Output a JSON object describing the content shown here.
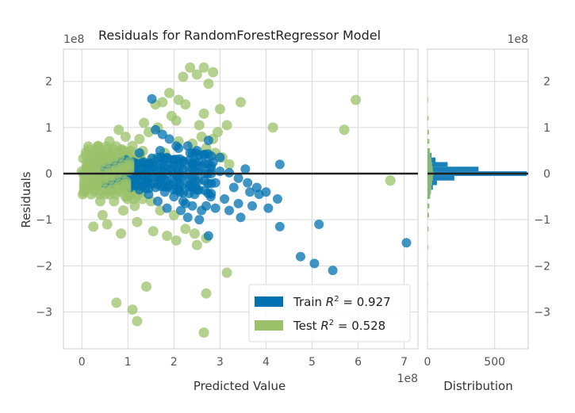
{
  "chart_data": {
    "type": "scatter",
    "title": "Residuals for RandomForestRegressor Model",
    "xlabel": "Predicted Value",
    "ylabel": "Residuals",
    "x_exponent": "1e8",
    "y_exponent": "1e8",
    "xlim": [
      -0.4,
      7.3
    ],
    "ylim": [
      -3.8,
      2.7
    ],
    "xticks": [
      "0",
      "1",
      "2",
      "3",
      "4",
      "5",
      "6",
      "7"
    ],
    "yticks": [
      "−3",
      "−2",
      "−1",
      "0",
      "1",
      "2"
    ],
    "hist_xlabel": "Distribution",
    "hist_xticks": [
      "0",
      "500"
    ],
    "hist_xlim": [
      0,
      750
    ],
    "grid": true,
    "legend_position": "lower-right",
    "colors": {
      "train": "#0072B2",
      "test": "#9BC26B",
      "zero_line": "#222222"
    },
    "series": [
      {
        "name": "Train",
        "label_prefix": "Train",
        "r2_label": "= 0.927",
        "points": [
          [
            1.52,
            1.62
          ],
          [
            1.6,
            0.95
          ],
          [
            1.75,
            0.85
          ],
          [
            1.9,
            0.75
          ],
          [
            2.1,
            0.55
          ],
          [
            2.3,
            0.6
          ],
          [
            2.5,
            0.5
          ],
          [
            2.75,
            0.72
          ],
          [
            1.7,
            0.5
          ],
          [
            1.85,
            0.35
          ],
          [
            2.0,
            0.3
          ],
          [
            2.2,
            0.25
          ],
          [
            2.4,
            0.2
          ],
          [
            2.6,
            0.15
          ],
          [
            2.8,
            0.1
          ],
          [
            3.0,
            0.05
          ],
          [
            3.2,
            0.02
          ],
          [
            3.4,
            -0.1
          ],
          [
            3.6,
            -0.2
          ],
          [
            3.8,
            -0.3
          ],
          [
            4.0,
            -0.4
          ],
          [
            4.3,
            0.2
          ],
          [
            1.4,
            -0.2
          ],
          [
            1.6,
            -0.3
          ],
          [
            1.8,
            -0.4
          ],
          [
            2.0,
            -0.5
          ],
          [
            2.2,
            -0.6
          ],
          [
            2.4,
            -0.7
          ],
          [
            2.6,
            -0.8
          ],
          [
            2.8,
            -0.5
          ],
          [
            3.1,
            -0.55
          ],
          [
            3.4,
            -0.65
          ],
          [
            3.7,
            -0.7
          ],
          [
            2.3,
            -0.95
          ],
          [
            2.7,
            -0.7
          ],
          [
            2.9,
            -0.75
          ],
          [
            3.2,
            -0.8
          ],
          [
            3.0,
            0.35
          ],
          [
            2.65,
            0.4
          ],
          [
            2.35,
            0.45
          ],
          [
            1.95,
            0.1
          ],
          [
            1.55,
            0.15
          ],
          [
            1.35,
            0.25
          ],
          [
            1.2,
            -0.05
          ],
          [
            1.1,
            0.05
          ],
          [
            1.25,
            -0.35
          ],
          [
            1.45,
            -0.45
          ],
          [
            1.7,
            -0.15
          ],
          [
            1.9,
            -0.25
          ],
          [
            2.1,
            -0.35
          ],
          [
            2.5,
            -0.35
          ],
          [
            2.9,
            -0.2
          ],
          [
            3.3,
            -0.3
          ],
          [
            3.55,
            0.1
          ],
          [
            3.85,
            -0.45
          ],
          [
            2.15,
            -0.8
          ],
          [
            2.45,
            -0.45
          ],
          [
            1.65,
            -0.6
          ],
          [
            1.85,
            -0.75
          ],
          [
            2.55,
            -1.0
          ],
          [
            2.25,
            -0.65
          ],
          [
            3.45,
            -0.95
          ],
          [
            4.25,
            -0.55
          ],
          [
            4.3,
            -1.15
          ],
          [
            5.15,
            -1.1
          ],
          [
            4.75,
            -1.8
          ],
          [
            5.05,
            -1.95
          ],
          [
            5.45,
            -2.1
          ],
          [
            7.05,
            -1.5
          ],
          [
            4.05,
            -0.75
          ],
          [
            3.65,
            -0.4
          ],
          [
            2.85,
            0.25
          ],
          [
            2.05,
            0.6
          ],
          [
            1.25,
            0.45
          ],
          [
            0.95,
            0.3
          ],
          [
            0.85,
            -0.1
          ],
          [
            1.05,
            -0.3
          ],
          [
            1.15,
            0.2
          ],
          [
            2.75,
            -1.35
          ],
          [
            2.35,
            -0.25
          ]
        ]
      },
      {
        "name": "Test",
        "label_prefix": "Test",
        "r2_label": "= 0.528",
        "points": [
          [
            2.35,
            2.3
          ],
          [
            2.65,
            2.3
          ],
          [
            2.5,
            2.15
          ],
          [
            2.85,
            2.2
          ],
          [
            2.2,
            2.1
          ],
          [
            2.75,
            1.95
          ],
          [
            1.9,
            1.75
          ],
          [
            2.1,
            1.6
          ],
          [
            1.6,
            1.5
          ],
          [
            1.75,
            1.55
          ],
          [
            2.65,
            1.3
          ],
          [
            3.45,
            1.55
          ],
          [
            3.0,
            1.4
          ],
          [
            2.95,
            0.9
          ],
          [
            2.85,
            0.75
          ],
          [
            2.6,
            0.8
          ],
          [
            2.4,
            0.65
          ],
          [
            2.1,
            0.7
          ],
          [
            2.7,
            0.55
          ],
          [
            2.9,
            0.45
          ],
          [
            3.05,
            0.35
          ],
          [
            3.2,
            0.2
          ],
          [
            4.15,
            1.0
          ],
          [
            5.7,
            0.95
          ],
          [
            5.95,
            1.6
          ],
          [
            6.7,
            -0.15
          ],
          [
            1.35,
            1.1
          ],
          [
            1.45,
            0.9
          ],
          [
            1.25,
            0.75
          ],
          [
            1.1,
            0.6
          ],
          [
            0.95,
            0.8
          ],
          [
            0.8,
            0.95
          ],
          [
            0.6,
            0.7
          ],
          [
            0.4,
            0.45
          ],
          [
            0.2,
            0.3
          ],
          [
            0.1,
            0.15
          ],
          [
            0.0,
            0.05
          ],
          [
            0.15,
            -0.1
          ],
          [
            0.3,
            -0.25
          ],
          [
            0.5,
            -0.45
          ],
          [
            0.7,
            -0.6
          ],
          [
            0.9,
            -0.8
          ],
          [
            0.45,
            -0.9
          ],
          [
            0.25,
            -1.15
          ],
          [
            0.55,
            -1.1
          ],
          [
            0.85,
            -1.3
          ],
          [
            1.2,
            -1.05
          ],
          [
            1.55,
            -1.25
          ],
          [
            1.85,
            -1.35
          ],
          [
            2.05,
            -1.45
          ],
          [
            2.5,
            -1.55
          ],
          [
            2.7,
            -1.4
          ],
          [
            3.15,
            -2.15
          ],
          [
            2.7,
            -2.6
          ],
          [
            1.4,
            -2.45
          ],
          [
            0.75,
            -2.8
          ],
          [
            1.1,
            -2.95
          ],
          [
            1.2,
            -3.2
          ],
          [
            2.65,
            -3.45
          ],
          [
            1.5,
            -0.6
          ],
          [
            1.7,
            -0.8
          ],
          [
            1.3,
            -0.4
          ],
          [
            2.0,
            -0.9
          ],
          [
            2.25,
            -1.2
          ],
          [
            2.45,
            -1.3
          ],
          [
            1.05,
            0.35
          ],
          [
            0.65,
            0.2
          ],
          [
            0.35,
            0.6
          ],
          [
            0.05,
            -0.4
          ],
          [
            0.75,
            0.1
          ],
          [
            1.55,
            0.3
          ],
          [
            1.8,
            0.45
          ],
          [
            0.95,
            -0.5
          ],
          [
            0.6,
            -0.15
          ],
          [
            0.25,
            0.1
          ],
          [
            1.15,
            -0.7
          ],
          [
            0.4,
            -0.6
          ],
          [
            0.85,
            0.5
          ],
          [
            1.95,
            1.25
          ],
          [
            2.25,
            1.5
          ],
          [
            1.65,
            1.0
          ],
          [
            2.05,
            1.15
          ],
          [
            2.55,
            1.05
          ],
          [
            3.15,
            1.05
          ]
        ]
      }
    ],
    "histogram": {
      "bin_centers": [
        -3.6,
        -3.2,
        -2.8,
        -2.4,
        -2.0,
        -1.6,
        -1.2,
        -0.9,
        -0.7,
        -0.5,
        -0.4,
        -0.3,
        -0.2,
        -0.1,
        0.0,
        0.1,
        0.2,
        0.3,
        0.4,
        0.5,
        0.7,
        0.9,
        1.2,
        1.6,
        2.0,
        2.4
      ],
      "bin_height": 0.1,
      "train_counts": [
        0,
        0,
        0,
        0,
        1,
        2,
        4,
        6,
        10,
        18,
        25,
        40,
        70,
        200,
        740,
        380,
        150,
        60,
        30,
        15,
        8,
        4,
        2,
        0,
        0,
        0
      ],
      "test_counts": [
        1,
        2,
        2,
        3,
        3,
        5,
        8,
        12,
        15,
        20,
        25,
        30,
        35,
        40,
        45,
        40,
        35,
        30,
        25,
        20,
        15,
        12,
        8,
        5,
        3,
        1
      ]
    }
  }
}
